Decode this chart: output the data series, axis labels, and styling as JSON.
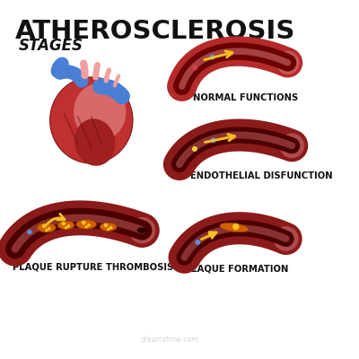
{
  "title": "ATHEROSCLEROSIS",
  "subtitle": "STAGES",
  "bg_color": "#ffffff",
  "labels": {
    "normal": "NORMAL FUNCTIONS",
    "endothelial": "ENDOTHELIAL DISFUNCTION",
    "rupture": "PLAQUE RUPTURE THROMBOSIS",
    "formation": "PLAQUE FORMATION"
  },
  "colors": {
    "artery_outer": "#b52a2a",
    "artery_inner": "#6a0000",
    "artery_hi": "#e08080",
    "artery_outer2": "#8b1a1a",
    "artery_inner2": "#4a0000",
    "artery_hi2": "#cc6060",
    "plaque_orange": "#d06000",
    "plaque_yellow": "#f4c020",
    "arrow_yellow": "#f4c020",
    "dot_blue": "#5b8dd9",
    "dot_red": "#d44040",
    "dot_yellow": "#f4d03f",
    "heart_red": "#c03030",
    "heart_pink": "#e08080",
    "heart_dark": "#a02020",
    "heart_blue": "#4a7fd4",
    "heart_vessel_pink": "#f0a0a0",
    "title_color": "#111111",
    "label_color": "#111111",
    "watermark": "#bbbbbb",
    "end_circle_hi": "#f1a8a8"
  },
  "title_fontsize": 21,
  "subtitle_fontsize": 12,
  "label_fontsize": 7.2
}
